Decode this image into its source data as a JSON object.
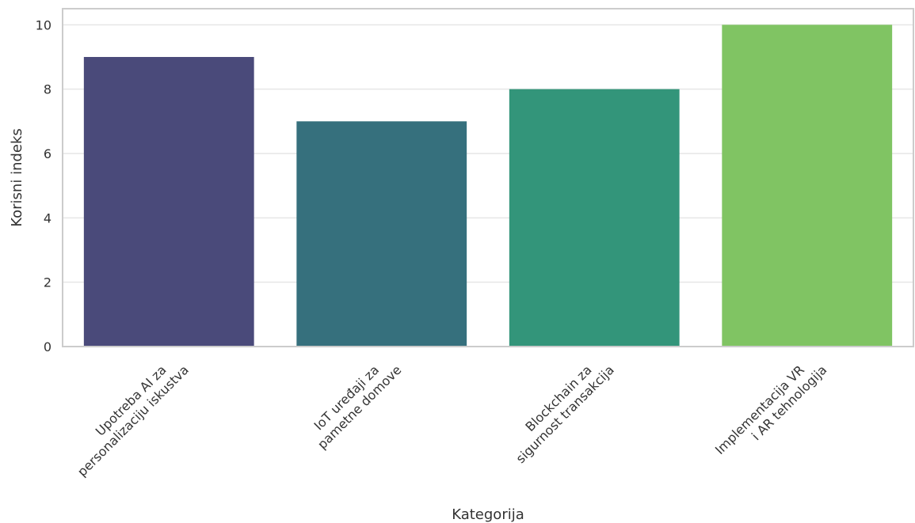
{
  "chart_data": {
    "type": "bar",
    "title": "",
    "xlabel": "Kategorija",
    "ylabel": "Korisni indeks",
    "categories": [
      [
        "Upotreba AI za",
        "personalizaciju iskustva"
      ],
      [
        "IoT uređaji za",
        "pametne domove"
      ],
      [
        "Blockchain za",
        "sigurnost transakcija"
      ],
      [
        "Implementacija VR",
        "i AR tehnologija"
      ]
    ],
    "values": [
      9,
      7,
      8,
      10
    ],
    "colors": [
      "#4a4a7a",
      "#36707d",
      "#33957a",
      "#80c463"
    ],
    "ylim": [
      0,
      10.5
    ],
    "yticks": [
      0,
      2,
      4,
      6,
      8,
      10
    ],
    "grid": true,
    "legend": "none"
  }
}
